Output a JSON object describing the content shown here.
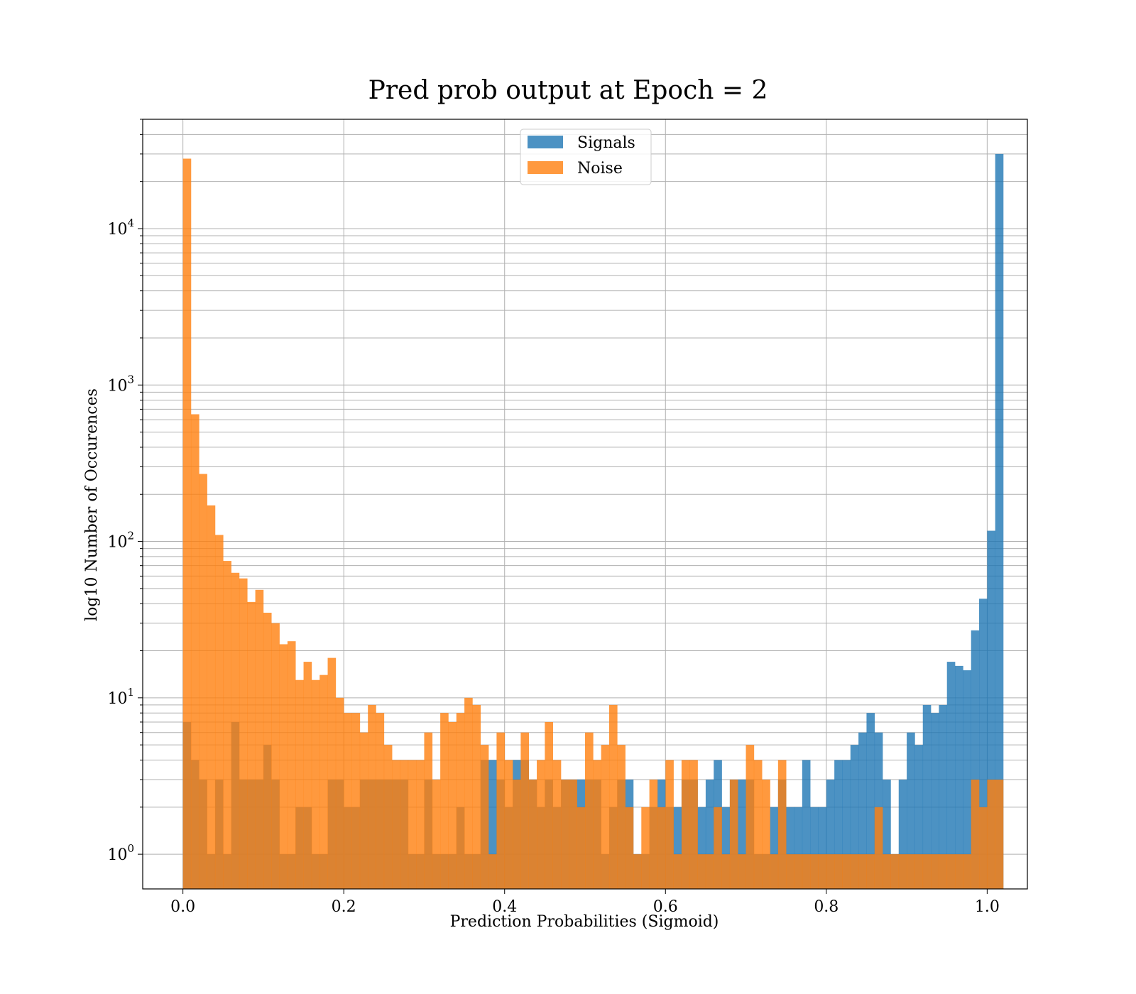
{
  "chart_data": {
    "type": "bar",
    "subtype": "histogram",
    "title": "Pred prob output at Epoch = 2",
    "xlabel": "Prediction Probabilities (Sigmoid)",
    "ylabel": "log10 Number of Occurences",
    "xscale": "linear",
    "yscale": "log",
    "xlim": [
      -0.05,
      1.05
    ],
    "ylim": [
      0.6,
      50000
    ],
    "xticks": [
      0.0,
      0.2,
      0.4,
      0.6,
      0.8,
      1.0
    ],
    "xtick_labels": [
      "0.0",
      "0.2",
      "0.4",
      "0.6",
      "0.8",
      "1.0"
    ],
    "yticks": [
      1,
      10,
      100,
      1000,
      10000
    ],
    "ytick_labels": [
      {
        "base": "10",
        "exp": "0"
      },
      {
        "base": "10",
        "exp": "1"
      },
      {
        "base": "10",
        "exp": "2"
      },
      {
        "base": "10",
        "exp": "3"
      },
      {
        "base": "10",
        "exp": "4"
      }
    ],
    "grid": true,
    "legend_position": "upper-center",
    "bin_width": 0.01,
    "x_start": 0.0,
    "series": [
      {
        "name": "Signals",
        "color": "#1f77b4",
        "counts": [
          7,
          4,
          3,
          1,
          3,
          1,
          7,
          3,
          3,
          3,
          5,
          3,
          1,
          1,
          2,
          2,
          1,
          1,
          3,
          3,
          2,
          2,
          3,
          3,
          3,
          3,
          3,
          3,
          1,
          1,
          3,
          1,
          1,
          1,
          2,
          1,
          1,
          4,
          4,
          3,
          2,
          4,
          4,
          3,
          2,
          3,
          2,
          3,
          3,
          3,
          3,
          3,
          1,
          2,
          3,
          3,
          1,
          1,
          2,
          3,
          2,
          2,
          3,
          3,
          2,
          3,
          4,
          2,
          3,
          3,
          3,
          1,
          1,
          2,
          3,
          2,
          2,
          4,
          2,
          2,
          3,
          4,
          4,
          5,
          6,
          8,
          6,
          3,
          1,
          3,
          6,
          5,
          9,
          8,
          9,
          17,
          16,
          15,
          27,
          43,
          117,
          30000
        ]
      },
      {
        "name": "Noise",
        "color": "#ff7f0e",
        "counts": [
          28000,
          650,
          270,
          170,
          110,
          75,
          63,
          58,
          41,
          49,
          35,
          30,
          22,
          23,
          13,
          17,
          13,
          14,
          18,
          10,
          8,
          8,
          6,
          9,
          8,
          5,
          4,
          4,
          4,
          4,
          6,
          3,
          8,
          7,
          8,
          10,
          9,
          5,
          1,
          6,
          4,
          3,
          6,
          3,
          4,
          7,
          4,
          3,
          3,
          2,
          6,
          4,
          5,
          9,
          5,
          2,
          1,
          2,
          3,
          2,
          4,
          1,
          4,
          4,
          1,
          1,
          2,
          1,
          3,
          1,
          5,
          4,
          3,
          1,
          4,
          1,
          1,
          1,
          1,
          1,
          1,
          1,
          1,
          1,
          1,
          1,
          2,
          1,
          1,
          1,
          1,
          1,
          1,
          1,
          1,
          1,
          1,
          1,
          3,
          2,
          3,
          3
        ]
      }
    ]
  }
}
